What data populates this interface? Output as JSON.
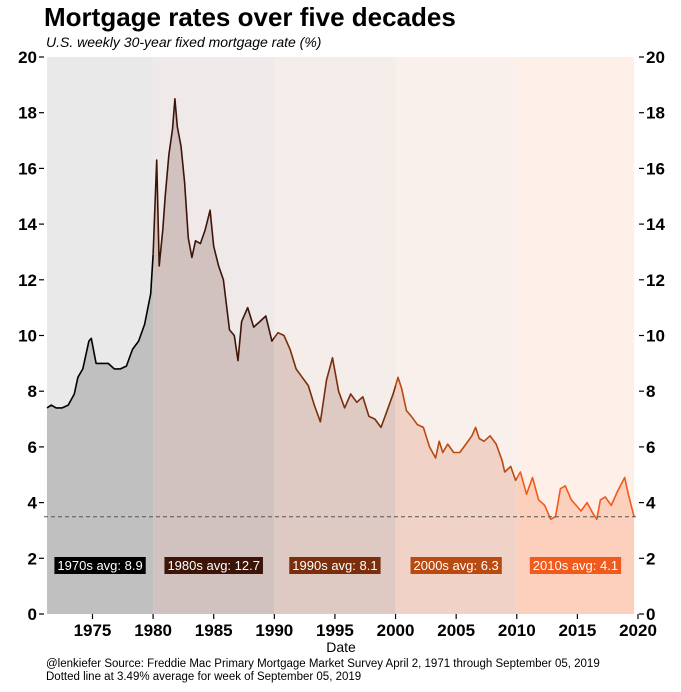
{
  "header": {
    "title": "Mortgage rates over five decades",
    "subtitle": "U.S. weekly 30-year fixed mortgage rate (%)"
  },
  "caption": {
    "line1": "@lenkiefer Source: Freddie Mac Primary Mortgage Market Survey April 2, 1971 through September 05, 2019",
    "line2": "Dotted line at 3.49% average for week of September 05, 2019"
  },
  "chart_data": {
    "type": "area",
    "title": "Mortgage rates over five decades",
    "subtitle": "U.S. weekly 30-year fixed mortgage rate (%)",
    "xlabel": "Date",
    "ylabel": "",
    "xlim": [
      1971.0,
      2020.0
    ],
    "ylim": [
      0,
      20
    ],
    "x_ticks": [
      1975,
      1980,
      1985,
      1990,
      1995,
      2000,
      2005,
      2010,
      2015,
      2020
    ],
    "y_ticks": [
      0,
      2,
      4,
      6,
      8,
      10,
      12,
      14,
      16,
      18,
      20
    ],
    "reference_line": {
      "value": 3.49,
      "style": "dotted",
      "label": "3.49% average for week of September 05, 2019"
    },
    "decades": [
      {
        "label": "1970s avg: 8.9",
        "start": 1971.25,
        "end": 1980.0,
        "avg": 8.9,
        "color": "#000000",
        "fill": "#c0c0c0"
      },
      {
        "label": "1980s avg: 12.7",
        "start": 1980.0,
        "end": 1990.0,
        "avg": 12.7,
        "color": "#3d1408",
        "fill": "#d2c2bf"
      },
      {
        "label": "1990s avg: 8.1",
        "start": 1990.0,
        "end": 2000.0,
        "avg": 8.1,
        "color": "#7a2e0c",
        "fill": "#dfcac3"
      },
      {
        "label": "2000s avg: 6.3",
        "start": 2000.0,
        "end": 2010.0,
        "avg": 6.3,
        "color": "#b84a12",
        "fill": "#f0d3c6"
      },
      {
        "label": "2010s avg: 4.1",
        "start": 2010.0,
        "end": 2019.68,
        "avg": 4.1,
        "color": "#f05a1c",
        "fill": "#fcd0bd"
      }
    ],
    "series": [
      {
        "name": "30-year fixed rate",
        "x": [
          1971.25,
          1971.6,
          1972.0,
          1972.5,
          1973.0,
          1973.5,
          1973.8,
          1974.2,
          1974.7,
          1974.9,
          1975.3,
          1975.8,
          1976.3,
          1976.8,
          1977.3,
          1977.8,
          1978.3,
          1978.8,
          1979.3,
          1979.8,
          1980.0,
          1980.3,
          1980.5,
          1980.8,
          1981.0,
          1981.3,
          1981.6,
          1981.8,
          1982.0,
          1982.3,
          1982.6,
          1982.9,
          1983.2,
          1983.5,
          1983.9,
          1984.3,
          1984.7,
          1985.0,
          1985.4,
          1985.8,
          1986.3,
          1986.7,
          1987.0,
          1987.3,
          1987.8,
          1988.3,
          1988.8,
          1989.3,
          1989.8,
          1990.3,
          1990.8,
          1991.3,
          1991.8,
          1992.3,
          1992.8,
          1993.3,
          1993.8,
          1994.3,
          1994.8,
          1995.3,
          1995.8,
          1996.3,
          1996.8,
          1997.3,
          1997.8,
          1998.3,
          1998.8,
          1999.3,
          1999.8,
          2000.2,
          2000.5,
          2000.9,
          2001.3,
          2001.8,
          2002.3,
          2002.8,
          2003.3,
          2003.6,
          2003.9,
          2004.3,
          2004.8,
          2005.3,
          2005.8,
          2006.3,
          2006.6,
          2006.9,
          2007.3,
          2007.8,
          2008.3,
          2008.8,
          2009.0,
          2009.5,
          2009.9,
          2010.3,
          2010.8,
          2011.3,
          2011.8,
          2012.3,
          2012.8,
          2013.2,
          2013.6,
          2014.0,
          2014.5,
          2014.9,
          2015.3,
          2015.8,
          2016.3,
          2016.6,
          2016.9,
          2017.3,
          2017.8,
          2018.3,
          2018.9,
          2019.2,
          2019.5,
          2019.68
        ],
        "y": [
          7.4,
          7.5,
          7.4,
          7.4,
          7.5,
          7.9,
          8.5,
          8.8,
          9.8,
          9.9,
          9.0,
          9.0,
          9.0,
          8.8,
          8.8,
          8.9,
          9.5,
          9.8,
          10.4,
          11.5,
          12.9,
          16.3,
          12.5,
          13.8,
          15.0,
          16.5,
          17.4,
          18.5,
          17.5,
          16.8,
          15.5,
          13.5,
          12.8,
          13.4,
          13.3,
          13.8,
          14.5,
          13.2,
          12.5,
          12.0,
          10.2,
          10.0,
          9.1,
          10.5,
          11.0,
          10.3,
          10.5,
          10.7,
          9.8,
          10.1,
          10.0,
          9.5,
          8.8,
          8.5,
          8.2,
          7.5,
          6.9,
          8.4,
          9.2,
          8.0,
          7.4,
          7.9,
          7.6,
          7.8,
          7.1,
          7.0,
          6.7,
          7.3,
          7.9,
          8.5,
          8.1,
          7.3,
          7.1,
          6.8,
          6.7,
          6.0,
          5.6,
          6.2,
          5.8,
          6.1,
          5.8,
          5.8,
          6.1,
          6.4,
          6.7,
          6.3,
          6.2,
          6.4,
          6.1,
          5.5,
          5.1,
          5.3,
          4.8,
          5.1,
          4.3,
          4.9,
          4.1,
          3.9,
          3.4,
          3.5,
          4.5,
          4.6,
          4.1,
          3.9,
          3.7,
          4.0,
          3.6,
          3.4,
          4.1,
          4.2,
          3.9,
          4.4,
          4.9,
          4.3,
          3.8,
          3.49
        ]
      }
    ]
  }
}
